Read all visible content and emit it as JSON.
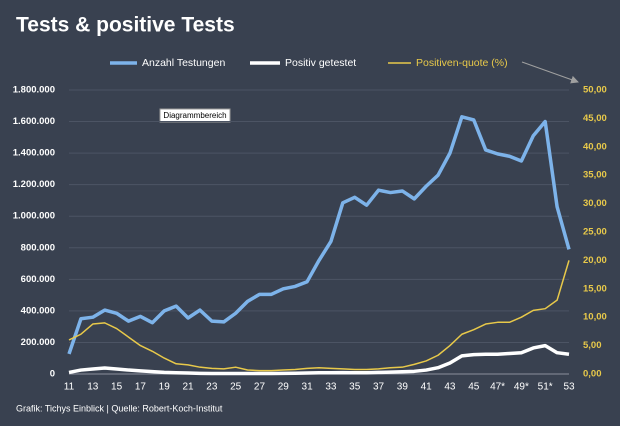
{
  "chart_data": {
    "type": "line",
    "title": "Tests & positive Tests",
    "source": "Grafik: Tichys Einblick | Quelle: Robert-Koch-Institut",
    "tooltip": "Diagrammbereich",
    "categories": [
      "11",
      null,
      "13",
      null,
      "15",
      null,
      "17",
      null,
      "19",
      null,
      "21",
      null,
      "23",
      null,
      "25",
      null,
      "27",
      null,
      "29",
      null,
      "31",
      null,
      "33",
      null,
      "35",
      null,
      "37",
      null,
      "39",
      null,
      "41",
      null,
      "43",
      null,
      "45",
      null,
      "47*",
      null,
      "49*",
      null,
      "51*",
      null,
      "53"
    ],
    "series": [
      {
        "name": "Anzahl Testungen",
        "color": "#7db3ea",
        "values": [
          127000,
          350000,
          360000,
          405000,
          385000,
          335000,
          365000,
          325000,
          400000,
          430000,
          355000,
          405000,
          335000,
          330000,
          385000,
          460000,
          505000,
          505000,
          540000,
          555000,
          585000,
          720000,
          840000,
          1085000,
          1120000,
          1070000,
          1165000,
          1150000,
          1160000,
          1110000,
          1190000,
          1260000,
          1400000,
          1630000,
          1610000,
          1420000,
          1395000,
          1380000,
          1350000,
          1510000,
          1600000,
          1060000,
          790000
        ]
      },
      {
        "name": "Positiv getestet",
        "color": "#ffffff",
        "values": [
          10000,
          25000,
          32000,
          38000,
          32000,
          25000,
          20000,
          15000,
          10000,
          8000,
          6000,
          4000,
          3000,
          3000,
          3000,
          3000,
          3000,
          3000,
          4000,
          5000,
          6000,
          8000,
          8000,
          9000,
          8000,
          8000,
          10000,
          12000,
          14000,
          17000,
          25000,
          40000,
          70000,
          115000,
          123000,
          125000,
          125000,
          130000,
          135000,
          165000,
          180000,
          135000,
          125000
        ]
      },
      {
        "name": "Positiven-quote (%)",
        "color": "#e8c94a",
        "axis": "y2",
        "values": [
          6.0,
          7.0,
          8.8,
          9.0,
          8.0,
          6.5,
          5.0,
          4.0,
          2.8,
          1.8,
          1.6,
          1.2,
          1.0,
          0.9,
          1.2,
          0.7,
          0.6,
          0.6,
          0.7,
          0.8,
          1.0,
          1.1,
          1.0,
          0.9,
          0.8,
          0.8,
          0.9,
          1.1,
          1.2,
          1.7,
          2.3,
          3.3,
          5.0,
          7.0,
          7.8,
          8.8,
          9.1,
          9.1,
          10.0,
          11.2,
          11.5,
          13.0,
          20.0
        ]
      }
    ],
    "ylim": [
      0,
      1800000
    ],
    "yticks": [
      0,
      {
        "value": 200000,
        "label": "200.000"
      },
      {
        "value": 400000,
        "label": "400.000"
      },
      {
        "value": 600000,
        "label": "600.000"
      },
      {
        "value": 800000,
        "label": "800.000"
      },
      {
        "value": 1000000,
        "label": "1.000.000"
      },
      {
        "value": 1200000,
        "label": "1.200.000"
      },
      {
        "value": 1400000,
        "label": "1.400.000"
      },
      {
        "value": 1600000,
        "label": "1.600.000"
      },
      {
        "value": 1800000,
        "label": "1.800.000"
      }
    ],
    "y2lim": [
      0,
      50
    ],
    "y2ticks": [
      {
        "value": 0,
        "label": "0,00"
      },
      {
        "value": 5,
        "label": "5,00"
      },
      {
        "value": 10,
        "label": "10,00"
      },
      {
        "value": 15,
        "label": "15,00"
      },
      {
        "value": 20,
        "label": "20,00"
      },
      {
        "value": 25,
        "label": "25,00"
      },
      {
        "value": 30,
        "label": "30,00"
      },
      {
        "value": 35,
        "label": "35,00"
      },
      {
        "value": 40,
        "label": "40,00"
      },
      {
        "value": 45,
        "label": "45,00"
      },
      {
        "value": 50,
        "label": "50,00"
      }
    ],
    "grid": true
  }
}
